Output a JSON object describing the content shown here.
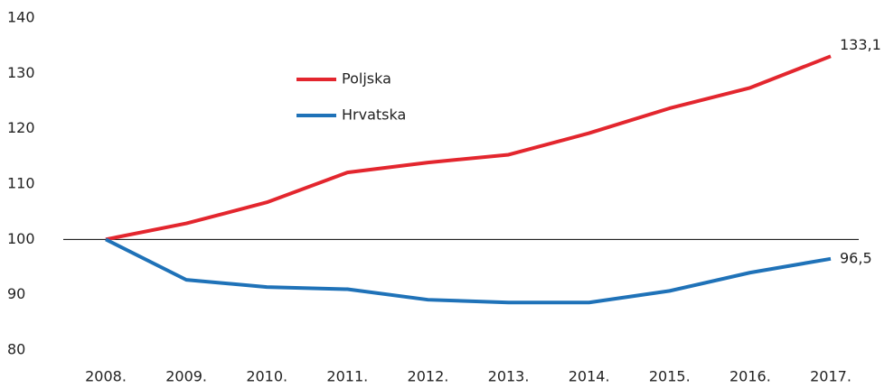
{
  "chart_data": {
    "type": "line",
    "categories": [
      "2008.",
      "2009.",
      "2010.",
      "2011.",
      "2012.",
      "2013.",
      "2014.",
      "2015.",
      "2016.",
      "2017."
    ],
    "series": [
      {
        "name": "Poljska",
        "color": "#e3262e",
        "values": [
          100,
          102.9,
          106.7,
          112.1,
          113.9,
          115.3,
          119.2,
          123.7,
          127.4,
          133.1
        ],
        "value_labels": [
          null,
          null,
          null,
          null,
          null,
          null,
          null,
          null,
          null,
          "133,1"
        ]
      },
      {
        "name": "Hrvatska",
        "color": "#1f72b8",
        "values": [
          100,
          92.7,
          91.4,
          91.0,
          89.1,
          88.6,
          88.6,
          90.7,
          94.0,
          96.5
        ],
        "value_labels": [
          null,
          null,
          null,
          null,
          null,
          null,
          null,
          null,
          null,
          "96,5"
        ]
      }
    ],
    "ylim": [
      80,
      140
    ],
    "yticks": [
      80,
      90,
      100,
      110,
      120,
      130,
      140
    ],
    "reference_line": 100,
    "grid": false,
    "legend": "upper-center"
  }
}
